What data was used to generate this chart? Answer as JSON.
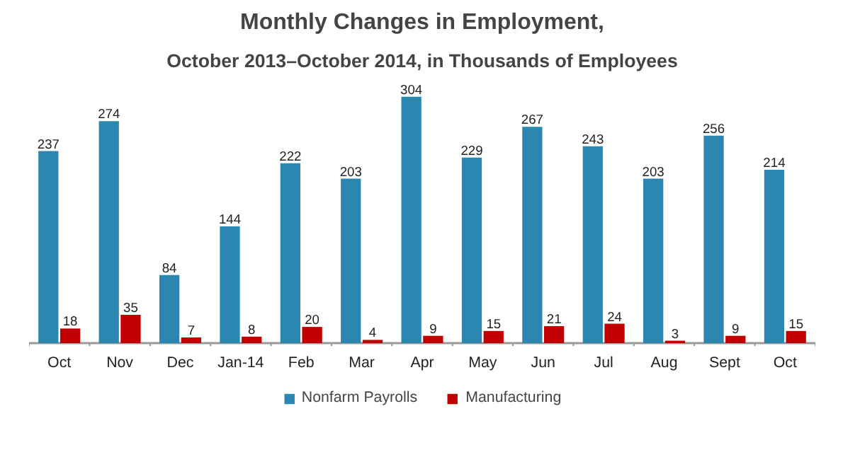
{
  "chart_data": {
    "type": "bar",
    "title": "Monthly Changes in Employment,",
    "subtitle": "October 2013–October 2014, in Thousands of Employees",
    "categories": [
      "Oct",
      "Nov",
      "Dec",
      "Jan-14",
      "Feb",
      "Mar",
      "Apr",
      "May",
      "Jun",
      "Jul",
      "Aug",
      "Sept",
      "Oct"
    ],
    "series": [
      {
        "name": "Nonfarm Payrolls",
        "color": "#2b87b0",
        "values": [
          237,
          274,
          84,
          144,
          222,
          203,
          304,
          229,
          267,
          243,
          203,
          256,
          214
        ]
      },
      {
        "name": "Manufacturing",
        "color": "#c00000",
        "values": [
          18,
          35,
          7,
          8,
          20,
          4,
          9,
          15,
          21,
          24,
          3,
          9,
          15
        ]
      }
    ],
    "data_labels": true,
    "grid": false,
    "legend": "bottom"
  }
}
